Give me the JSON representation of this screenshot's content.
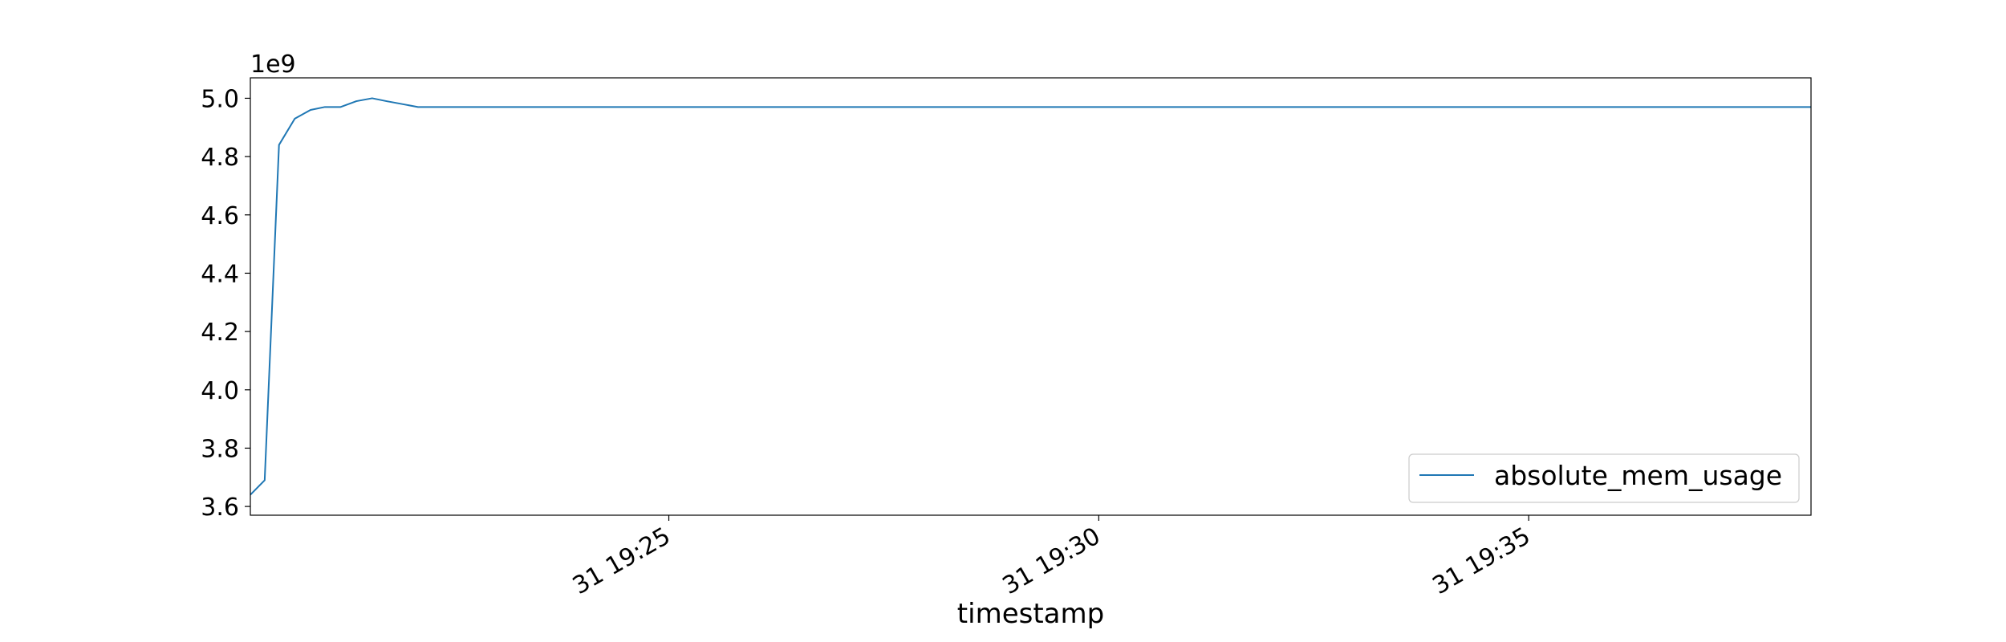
{
  "chart_data": {
    "type": "line",
    "xlabel": "timestamp",
    "ylabel": "",
    "offset_text": "1e9",
    "x_ticks": [
      "31 19:25",
      "31 19:30",
      "31 19:35"
    ],
    "y_ticks": [
      "3.6",
      "3.8",
      "4.0",
      "4.2",
      "4.4",
      "4.6",
      "4.8",
      "5.0"
    ],
    "xlim": [
      "2020-01-31 19:20:08",
      "2020-01-31 19:38:17"
    ],
    "ylim": [
      3570000000.0,
      5070000000.0
    ],
    "grid": false,
    "legend_position": "lower right",
    "series": [
      {
        "name": "absolute_mem_usage",
        "color": "#1f77b4",
        "points": [
          [
            "2020-01-31 19:20:08",
            3640000000.0
          ],
          [
            "2020-01-31 19:20:18",
            3690000000.0
          ],
          [
            "2020-01-31 19:20:28",
            4840000000.0
          ],
          [
            "2020-01-31 19:20:39",
            4930000000.0
          ],
          [
            "2020-01-31 19:20:50",
            4960000000.0
          ],
          [
            "2020-01-31 19:21:00",
            4970000000.0
          ],
          [
            "2020-01-31 19:21:11",
            4970000000.0
          ],
          [
            "2020-01-31 19:21:22",
            4990000000.0
          ],
          [
            "2020-01-31 19:21:33",
            5000000000.0
          ],
          [
            "2020-01-31 19:21:43",
            4990000000.0
          ],
          [
            "2020-01-31 19:21:54",
            4980000000.0
          ],
          [
            "2020-01-31 19:22:05",
            4970000000.0
          ],
          [
            "2020-01-31 19:22:27",
            4970000000.0
          ],
          [
            "2020-01-31 19:38:17",
            4970000000.0
          ]
        ]
      }
    ]
  }
}
